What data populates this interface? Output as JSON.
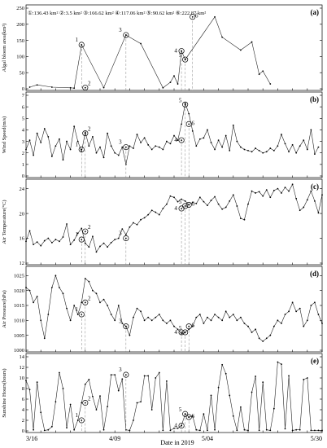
{
  "xlabel": "Date in 2019",
  "date_ticks": [
    "3/16",
    "4/09",
    "5/04",
    "5/30"
  ],
  "legend_text": "①:136.43 km² ②:3.5 km² ③:166.62 km² ④:117.06 km²  ⑤:90.62 km² ⑥:222.87 km²",
  "chart_data": [
    {
      "panel": "(a)",
      "type": "line",
      "ylabel": "Algal bloom area(km²)",
      "ylim": [
        0,
        250
      ],
      "yticks": [
        0,
        50,
        100,
        150,
        200,
        250
      ],
      "x": [
        1,
        3,
        7,
        12,
        13,
        15,
        21,
        27,
        31,
        37,
        39,
        40,
        41,
        42,
        43,
        51,
        53,
        58,
        61,
        63,
        64,
        66
      ],
      "values": [
        5,
        12,
        5,
        3,
        2,
        136.43,
        3.5,
        166.62,
        140,
        3,
        20,
        40,
        15,
        117.06,
        90.62,
        222.87,
        160,
        120,
        145,
        45,
        55,
        15
      ],
      "markers": [
        {
          "label": "1",
          "x": 15,
          "value": 136.43
        },
        {
          "label": "2",
          "x": 16,
          "value": 3.5
        },
        {
          "label": "3",
          "x": 27,
          "value": 166.62
        },
        {
          "label": "4",
          "x": 42,
          "value": 117.06
        },
        {
          "label": "5",
          "x": 43,
          "value": 90.62
        },
        {
          "label": "6",
          "x": 45,
          "value": 222.87
        }
      ]
    },
    {
      "panel": "(b)",
      "type": "line",
      "ylabel": "Wind Speed(m/s)",
      "ylim": [
        0,
        7
      ],
      "yticks": [
        0,
        1,
        2,
        3,
        4,
        5,
        6,
        7
      ],
      "values": [
        2.3,
        3.1,
        1.8,
        3.7,
        2.9,
        4.1,
        3.4,
        1.7,
        2.6,
        3.2,
        1.4,
        3.0,
        2.3,
        4.3,
        3.0,
        2.1,
        3.8,
        2.6,
        3.4,
        2.0,
        2.5,
        1.6,
        3.7,
        2.6,
        2.0,
        1.8,
        2.5,
        1.0,
        2.6,
        2.4,
        3.6,
        2.9,
        3.3,
        2.7,
        2.3,
        2.6,
        2.5,
        2.3,
        3.0,
        2.8,
        3.5,
        3.1,
        4.5,
        6.3,
        5.4,
        3.9,
        2.6,
        3.2,
        3.3,
        4.0,
        2.9,
        2.3,
        3.1,
        2.5,
        3.5,
        2.2,
        4.4,
        3.0,
        2.5,
        2.3,
        2.2,
        2.1,
        2.4,
        2.2,
        2.0,
        2.1,
        2.4,
        2.2,
        2.6,
        3.6,
        2.8,
        2.1,
        2.7,
        2.0,
        2.6,
        3.1,
        2.3,
        4.0,
        1.9,
        2.5
      ],
      "markers": [
        {
          "label": "1",
          "x": 15,
          "value": 2.3
        },
        {
          "label": "2",
          "x": 16,
          "value": 3.7
        },
        {
          "label": "3",
          "x": 27,
          "value": 2.5
        },
        {
          "label": "4",
          "x": 42,
          "value": 3.1
        },
        {
          "label": "5",
          "x": 43,
          "value": 6.2
        },
        {
          "label": "6",
          "x": 44,
          "value": 4.5
        }
      ]
    },
    {
      "panel": "(c)",
      "type": "line",
      "ylabel": "Air Temperature(°C)",
      "ylim": [
        12,
        25
      ],
      "yticks": [
        12,
        16,
        20,
        24
      ],
      "values": [
        15.5,
        17.2,
        15.0,
        15.4,
        14.8,
        15.6,
        16.0,
        15.3,
        15.8,
        15.5,
        16.2,
        18.3,
        15.0,
        15.7,
        16.8,
        17.6,
        15.2,
        14.6,
        16.3,
        13.8,
        14.7,
        15.2,
        14.6,
        15.3,
        15.8,
        16.0,
        17.5,
        16.6,
        17.8,
        18.5,
        18.2,
        19.0,
        19.3,
        19.8,
        20.5,
        20.2,
        19.8,
        20.8,
        21.5,
        22.8,
        22.6,
        21.9,
        22.3,
        22.0,
        21.4,
        21.8,
        21.6,
        22.6,
        21.9,
        21.3,
        22.1,
        22.7,
        21.5,
        20.7,
        21.0,
        22.0,
        23.0,
        21.2,
        19.2,
        19.0,
        21.5,
        23.6,
        23.3,
        23.5,
        22.8,
        23.8,
        22.6,
        23.7,
        24.0,
        23.3,
        24.2,
        23.6,
        24.7,
        22.4,
        20.5,
        21.0,
        22.2,
        23.6,
        22.0,
        20.1,
        23.0
      ],
      "markers": [
        {
          "label": "1",
          "x": 15,
          "value": 15.8
        },
        {
          "label": "2",
          "x": 16,
          "value": 17.1
        },
        {
          "label": "3",
          "x": 27,
          "value": 16.0
        },
        {
          "label": "4",
          "x": 42,
          "value": 20.8
        },
        {
          "label": "5",
          "x": 43,
          "value": 21.2
        },
        {
          "label": "6",
          "x": 44,
          "value": 21.4
        }
      ]
    },
    {
      "panel": "(d)",
      "type": "line",
      "ylabel": "Air Pressure(hPa)",
      "ylim": [
        1000,
        1027
      ],
      "yticks": [
        1000,
        1005,
        1010,
        1015,
        1020,
        1025
      ],
      "values": [
        1021,
        1020,
        1016,
        1018,
        1010,
        1004,
        1012,
        1021,
        1025,
        1021,
        1019,
        1014,
        1010,
        1015,
        1012,
        1016,
        1024,
        1023,
        1020,
        1019,
        1016,
        1017,
        1015,
        1012,
        1010,
        1015,
        1009,
        1008,
        1005,
        1011,
        1014,
        1013,
        1010,
        1011,
        1010,
        1011,
        1012,
        1010,
        1009,
        1010,
        1008,
        1007,
        1005.5,
        1006,
        1007,
        1008,
        1011,
        1012,
        1009,
        1011,
        1010,
        1012,
        1011,
        1010,
        1013,
        1011,
        1012,
        1010,
        1011,
        1009,
        1008,
        1006,
        1007,
        1004,
        1003,
        1004,
        1005,
        1008,
        1010,
        1009,
        1012,
        1013,
        1016,
        1013,
        1014,
        1008,
        1010,
        1015,
        1016,
        1012,
        1009
      ],
      "markers": [
        {
          "label": "1",
          "x": 15,
          "value": 1012
        },
        {
          "label": "2",
          "x": 16,
          "value": 1016
        },
        {
          "label": "3",
          "x": 27,
          "value": 1008
        },
        {
          "label": "4",
          "x": 42,
          "value": 1006
        },
        {
          "label": "5",
          "x": 43,
          "value": 1006
        },
        {
          "label": "6",
          "x": 44,
          "value": 1008
        }
      ]
    },
    {
      "panel": "(e)",
      "type": "line",
      "ylabel": "Sunshine Hours(hours)",
      "ylim": [
        0,
        14
      ],
      "yticks": [
        0,
        2,
        4,
        6,
        8,
        10,
        12,
        14
      ],
      "values": [
        9.5,
        7.8,
        0.2,
        9.2,
        3.5,
        0.1,
        0.2,
        0.8,
        5.5,
        11.0,
        8.0,
        0.6,
        5.0,
        0.2,
        2.0,
        5.3,
        8.8,
        9.7,
        6.5,
        4.0,
        6.6,
        0.2,
        4.6,
        10.6,
        10.6,
        7.6,
        9.8,
        0.2,
        0.1,
        2.0,
        5.3,
        5.5,
        10.4,
        10.4,
        4.0,
        10.0,
        11.0,
        0.1,
        9.4,
        0.1,
        0.5,
        0.5,
        1.0,
        3.2,
        2.6,
        2.8,
        0.2,
        0.1,
        3.2,
        0.1,
        6.7,
        0.2,
        8.2,
        12.5,
        10.8,
        6.7,
        2.8,
        0.1,
        4.5,
        0.2,
        0.1,
        7.3,
        10.3,
        0.1,
        9.2,
        0.2,
        0.1,
        4.2,
        13.0,
        12.6,
        0.4,
        10.4,
        0.1,
        0.2,
        0.2,
        9.7,
        10.0,
        0.1,
        0.1,
        0.1,
        0.1
      ],
      "markers": [
        {
          "label": "1",
          "x": 15,
          "value": 2.0
        },
        {
          "label": "2",
          "x": 16,
          "value": 5.3
        },
        {
          "label": "3",
          "x": 27,
          "value": 10.6
        },
        {
          "label": "4",
          "x": 42,
          "value": 1.0
        },
        {
          "label": "5",
          "x": 43,
          "value": 3.2
        },
        {
          "label": "6",
          "x": 44,
          "value": 2.6
        }
      ]
    }
  ]
}
